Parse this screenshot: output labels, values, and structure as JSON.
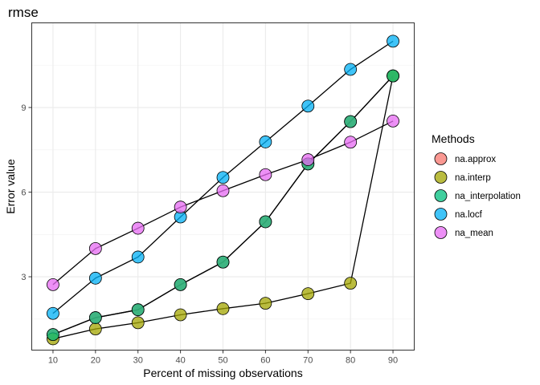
{
  "chart_data": {
    "type": "line",
    "title": "rmse",
    "xlabel": "Percent of missing observations",
    "ylabel": "Error value",
    "x": [
      10,
      20,
      30,
      40,
      50,
      60,
      70,
      80,
      90
    ],
    "xlim": [
      5,
      95
    ],
    "ylim": [
      0.4,
      12.0
    ],
    "xticks": [
      10,
      20,
      30,
      40,
      50,
      60,
      70,
      80,
      90
    ],
    "yticks": [
      3,
      6,
      9
    ],
    "grid": true,
    "legend": {
      "title": "Methods",
      "position": "right"
    },
    "series": [
      {
        "name": "na.approx",
        "color": "#F8766D",
        "values": [
          0.95,
          1.55,
          1.83,
          2.72,
          3.52,
          4.95,
          7.0,
          8.5,
          10.12
        ]
      },
      {
        "name": "na.interp",
        "color": "#A3A500",
        "values": [
          0.8,
          1.15,
          1.37,
          1.65,
          1.87,
          2.06,
          2.4,
          2.77,
          10.12
        ]
      },
      {
        "name": "na_interpolation",
        "color": "#00BF7D",
        "values": [
          0.95,
          1.55,
          1.83,
          2.72,
          3.52,
          4.95,
          7.0,
          8.5,
          10.12
        ]
      },
      {
        "name": "na.locf",
        "color": "#00B0F6",
        "values": [
          1.7,
          2.95,
          3.7,
          5.12,
          6.52,
          7.78,
          9.05,
          10.35,
          11.35
        ]
      },
      {
        "name": "na_mean",
        "color": "#E76BF3",
        "values": [
          2.72,
          4.0,
          4.72,
          5.47,
          6.05,
          6.62,
          7.15,
          7.77,
          8.52
        ]
      }
    ]
  }
}
